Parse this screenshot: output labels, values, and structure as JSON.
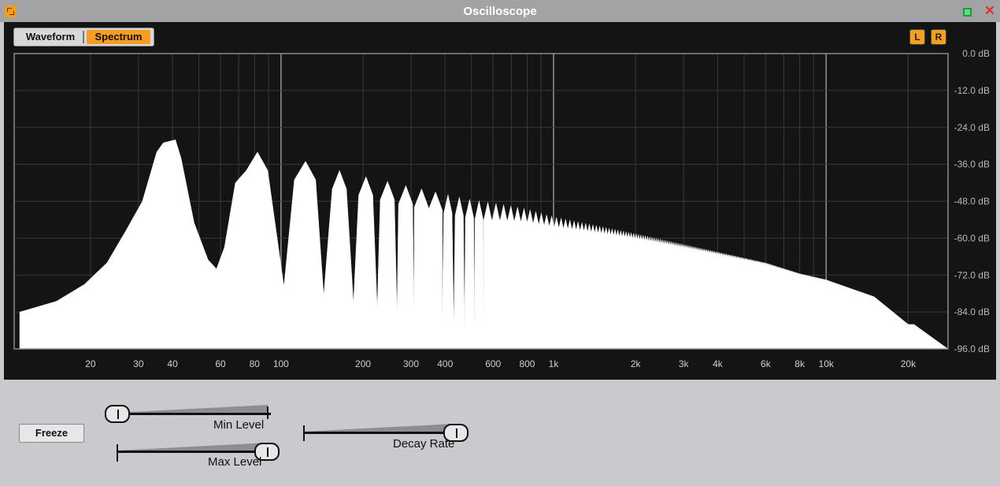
{
  "window": {
    "title": "Oscilloscope",
    "icon": "oscilloscope-app-icon",
    "maximize_icon": "maximize-icon",
    "close_icon": "close-icon",
    "close_glyph": "✕"
  },
  "mode": {
    "options": [
      "Waveform",
      "Spectrum"
    ],
    "selected": "Spectrum"
  },
  "channels": [
    {
      "label": "L",
      "active": true
    },
    {
      "label": "R",
      "active": true
    }
  ],
  "chart_data": {
    "type": "area",
    "xscale": "log",
    "xlim": [
      10.5,
      28000
    ],
    "ylim": [
      -96,
      0
    ],
    "grid": true,
    "x_tick_labels": [
      "20",
      "30",
      "40",
      "60",
      "80",
      "100",
      "200",
      "300",
      "400",
      "600",
      "800",
      "1k",
      "2k",
      "3k",
      "4k",
      "6k",
      "8k",
      "10k",
      "20k"
    ],
    "x_tick_values": [
      20,
      30,
      40,
      60,
      80,
      100,
      200,
      300,
      400,
      600,
      800,
      1000,
      2000,
      3000,
      4000,
      6000,
      8000,
      10000,
      20000
    ],
    "y_tick_labels": [
      "0.0 dB",
      "-12.0 dB",
      "-24.0 dB",
      "-36.0 dB",
      "-48.0 dB",
      "-60.0 dB",
      "-72.0 dB",
      "-84.0 dB",
      "-96.0 dB"
    ],
    "y_tick_values": [
      0,
      -12,
      -24,
      -36,
      -48,
      -60,
      -72,
      -84,
      -96
    ],
    "fundamental_hz": 41,
    "envelope": {
      "freq_hz": [
        41,
        82,
        123,
        164,
        205,
        246,
        290,
        350,
        420,
        500,
        600,
        700,
        800,
        1000,
        2000,
        3000,
        4000,
        6000,
        8000,
        10000,
        15000,
        20000
      ],
      "peak_db": [
        -28,
        -32,
        -35,
        -38,
        -40,
        -41.5,
        -43,
        -44.5,
        -46,
        -47.5,
        -48.5,
        -49.5,
        -50.5,
        -53,
        -58.5,
        -62,
        -64.5,
        -68,
        -71.5,
        -73.5,
        -79,
        -88
      ]
    },
    "low_end": {
      "freq_hz": [
        11,
        15,
        19,
        23,
        27,
        31,
        35,
        37,
        41,
        43,
        48,
        54,
        58,
        62,
        68
      ],
      "level_db": [
        -84,
        -80.5,
        -75,
        -68,
        -57.5,
        -48,
        -32,
        -29,
        -28,
        -34,
        -55,
        -67,
        -70,
        -63,
        -42
      ]
    }
  },
  "controls": {
    "freeze_label": "Freeze",
    "sliders": [
      {
        "name": "min-level",
        "label": "Min Level",
        "value": 0.0
      },
      {
        "name": "max-level",
        "label": "Max Level",
        "value": 1.0
      },
      {
        "name": "decay-rate",
        "label": "Decay Rate",
        "value": 1.0
      }
    ]
  }
}
